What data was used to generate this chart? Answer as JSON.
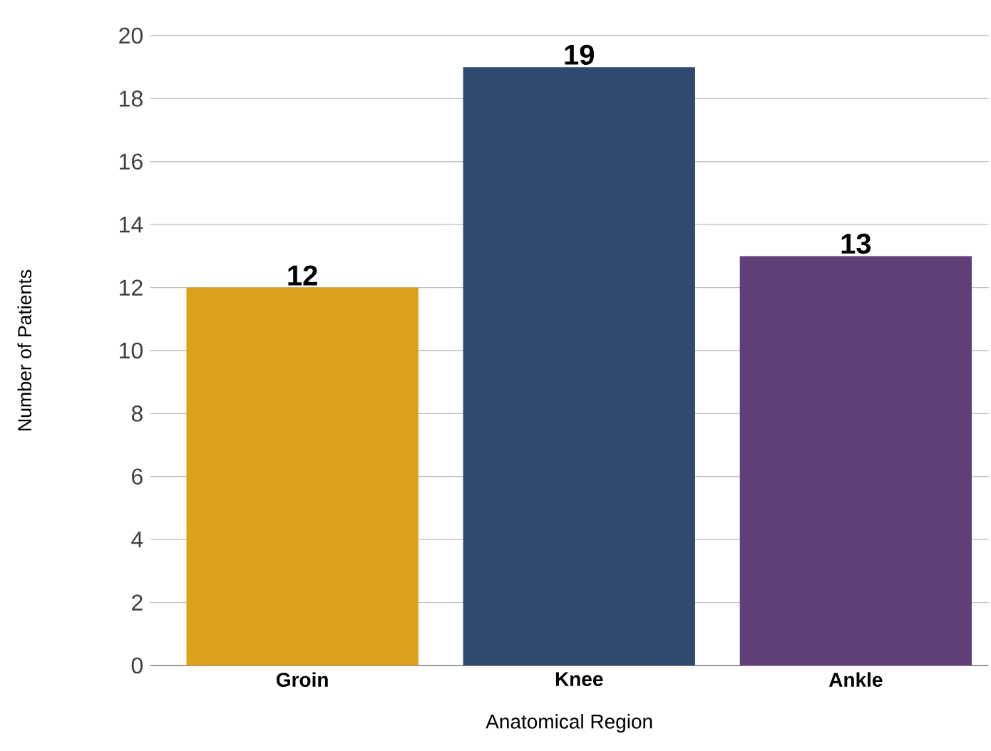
{
  "chart_data": {
    "type": "bar",
    "categories": [
      "Groin",
      "Knee",
      "Ankle"
    ],
    "values": [
      12,
      19,
      13
    ],
    "colors": [
      "#dca11a",
      "#2e4a6e",
      "#5e3f78"
    ],
    "xlabel": "Anatomical Region",
    "ylabel": "Number of Patients",
    "ylim": [
      0,
      20
    ],
    "yticks": [
      0,
      2,
      4,
      6,
      8,
      10,
      12,
      14,
      16,
      18,
      20
    ],
    "grid": "y",
    "data_labels": true
  }
}
